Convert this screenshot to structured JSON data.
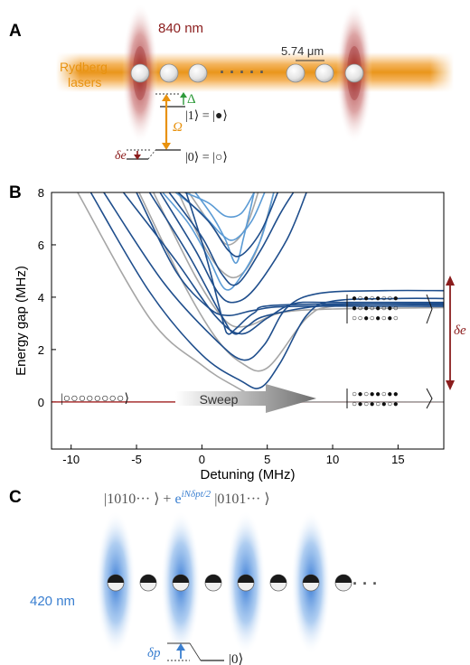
{
  "panel_a": {
    "letter": "A",
    "wavelength": "840 nm",
    "rydberg_label_line1": "Rydberg",
    "rydberg_label_line2": "lasers",
    "dots": "· · · · ·",
    "spacing": "5.74 μm",
    "delta_symbol": "Δ",
    "omega_symbol": "Ω",
    "state1": "|1⟩ = |●⟩",
    "state0": "|0⟩ = |○⟩",
    "delta_e": "δe",
    "colors": {
      "dark_red": "#8b1d1d",
      "orange": "#e8920f",
      "green": "#2e9a3a"
    }
  },
  "panel_b": {
    "letter": "B",
    "sweep_label": "Sweep",
    "ket_left": "|○○○○○○○○⟩",
    "ket_right_top": [
      "●○●○●○○●",
      "●○●○●○●○",
      "○○●○●○●○"
    ],
    "ket_right_bottom": [
      "○●○●●○●●",
      "○●○●○●○●"
    ],
    "delta_e": "δe",
    "colors": {
      "navy": "#1f4e8c",
      "light_blue": "#5b9bd5",
      "grey": "#a6a6a6",
      "zero_line": "#a83232",
      "arrow": "#8b1d1d"
    }
  },
  "chart_data": {
    "type": "line",
    "title": "",
    "xlabel": "Detuning (MHz)",
    "ylabel": "Energy gap (MHz)",
    "xlim": [
      -11.5,
      18.5
    ],
    "ylim": [
      -1.8,
      8
    ],
    "xticks": [
      -10,
      -5,
      0,
      5,
      10,
      15
    ],
    "yticks": [
      0,
      2,
      4,
      6,
      8
    ],
    "grid": false,
    "series": [
      {
        "color": "navy",
        "points": [
          [
            -8.5,
            8
          ],
          [
            -4,
            4.2
          ],
          [
            0,
            1.8
          ],
          [
            3,
            0.8
          ],
          [
            4.5,
            0.55
          ],
          [
            6,
            1.5
          ],
          [
            8,
            3.3
          ],
          [
            10,
            3.85
          ],
          [
            15,
            3.95
          ],
          [
            18.5,
            3.95
          ]
        ]
      },
      {
        "color": "navy",
        "points": [
          [
            -7.5,
            8
          ],
          [
            -3,
            4.6
          ],
          [
            1,
            2.4
          ],
          [
            3.2,
            1.6
          ],
          [
            4.8,
            2.2
          ],
          [
            6.5,
            3.6
          ],
          [
            9,
            4.15
          ],
          [
            14,
            4.25
          ],
          [
            18.5,
            4.25
          ]
        ]
      },
      {
        "color": "navy",
        "points": [
          [
            -6,
            8
          ],
          [
            -2,
            5.4
          ],
          [
            1,
            3.3
          ],
          [
            3,
            2.6
          ],
          [
            5,
            3.2
          ],
          [
            7,
            3.75
          ],
          [
            10,
            3.8
          ],
          [
            18.5,
            3.8
          ]
        ]
      },
      {
        "color": "navy",
        "points": [
          [
            -4,
            8
          ],
          [
            -1,
            5.6
          ],
          [
            1.5,
            3.3
          ],
          [
            2.5,
            2.6
          ],
          [
            3.5,
            2.9
          ],
          [
            5,
            3.3
          ],
          [
            10,
            3.7
          ],
          [
            18.5,
            3.7
          ]
        ]
      },
      {
        "color": "navy",
        "points": [
          [
            -1.2,
            8
          ],
          [
            0.3,
            5.6
          ],
          [
            1.6,
            3.1
          ],
          [
            2,
            2.6
          ],
          [
            2.6,
            2.8
          ],
          [
            4,
            3.4
          ],
          [
            6,
            3.7
          ],
          [
            18.5,
            3.75
          ]
        ]
      },
      {
        "color": "navy",
        "points": [
          [
            -5,
            8
          ],
          [
            -2,
            5
          ],
          [
            0.5,
            3.6
          ],
          [
            2,
            3.3
          ],
          [
            4,
            3.5
          ],
          [
            7,
            3.65
          ],
          [
            18.5,
            3.65
          ]
        ]
      },
      {
        "color": "navy",
        "points": [
          [
            -3.2,
            8
          ],
          [
            -0.5,
            5.8
          ],
          [
            1.2,
            4.2
          ],
          [
            2.4,
            3.8
          ],
          [
            4,
            4.3
          ],
          [
            6.5,
            6.2
          ],
          [
            8,
            8
          ]
        ]
      },
      {
        "color": "navy",
        "points": [
          [
            -2.5,
            8
          ],
          [
            0,
            6.3
          ],
          [
            1.5,
            4.9
          ],
          [
            2.7,
            4.5
          ],
          [
            4.5,
            5.8
          ],
          [
            6,
            7.2
          ],
          [
            7,
            8
          ]
        ]
      },
      {
        "color": "navy",
        "points": [
          [
            -1.8,
            8
          ],
          [
            0.5,
            6.9
          ],
          [
            2,
            5.8
          ],
          [
            3,
            5.6
          ],
          [
            4.5,
            6.5
          ],
          [
            5.8,
            8
          ]
        ]
      },
      {
        "color": "light_blue",
        "points": [
          [
            -3,
            8
          ],
          [
            -1,
            6.8
          ],
          [
            0.5,
            5.5
          ],
          [
            1.8,
            4.3
          ],
          [
            3,
            4.8
          ],
          [
            4.5,
            6.2
          ],
          [
            5.5,
            8
          ]
        ]
      },
      {
        "color": "light_blue",
        "points": [
          [
            -2,
            8
          ],
          [
            0,
            7.2
          ],
          [
            1.5,
            6.4
          ],
          [
            2.5,
            6.2
          ],
          [
            3.8,
            6.9
          ],
          [
            4.8,
            8
          ]
        ]
      },
      {
        "color": "light_blue",
        "points": [
          [
            -1.3,
            8
          ],
          [
            0.5,
            7.6
          ],
          [
            1.8,
            7.1
          ],
          [
            3,
            7.2
          ],
          [
            4,
            8
          ]
        ]
      },
      {
        "color": "light_blue",
        "points": [
          [
            -0.5,
            8
          ],
          [
            0.8,
            7.1
          ],
          [
            1.8,
            6.2
          ],
          [
            2.6,
            5.3
          ],
          [
            3.2,
            6.3
          ],
          [
            4,
            8
          ]
        ]
      },
      {
        "color": "grey",
        "points": [
          [
            -4.8,
            8
          ],
          [
            -1.5,
            4.6
          ],
          [
            1,
            2.5
          ],
          [
            3,
            1.5
          ],
          [
            5,
            1.3
          ],
          [
            8,
            3.2
          ],
          [
            10,
            3.65
          ],
          [
            15,
            3.75
          ],
          [
            18.5,
            3.75
          ]
        ]
      },
      {
        "color": "grey",
        "points": [
          [
            -3.7,
            8
          ],
          [
            -0.5,
            4.8
          ],
          [
            1.8,
            3.1
          ],
          [
            3.5,
            2.9
          ],
          [
            6,
            3.4
          ],
          [
            10,
            3.55
          ],
          [
            18.5,
            3.6
          ]
        ]
      },
      {
        "color": "grey",
        "points": [
          [
            -1.8,
            8
          ],
          [
            0,
            6.1
          ],
          [
            1.5,
            5
          ],
          [
            2.8,
            4.8
          ],
          [
            4.2,
            5.8
          ],
          [
            5.5,
            8
          ]
        ]
      },
      {
        "color": "grey",
        "points": [
          [
            -9.5,
            8
          ],
          [
            -4,
            3.2
          ],
          [
            0,
            1.4
          ],
          [
            2.5,
            0.6
          ],
          [
            4,
            0.25
          ],
          [
            6,
            0.05
          ],
          [
            8,
            0
          ],
          [
            18.5,
            0
          ]
        ]
      },
      {
        "color": "grey",
        "points": [
          [
            -1,
            8
          ],
          [
            0.8,
            6.7
          ],
          [
            2,
            6
          ],
          [
            3.3,
            6.6
          ],
          [
            4.3,
            8
          ]
        ]
      }
    ]
  },
  "panel_c": {
    "letter": "C",
    "formula_left": "|1010··· ⟩ + ",
    "formula_exp_base": "e",
    "formula_exp": "iNδpt/2",
    "formula_right": " |0101··· ⟩",
    "wavelength": "420 nm",
    "dots": "· · ·",
    "delta_p": "δp",
    "state0": "|0⟩",
    "colors": {
      "blue": "#3a7fd0"
    }
  }
}
